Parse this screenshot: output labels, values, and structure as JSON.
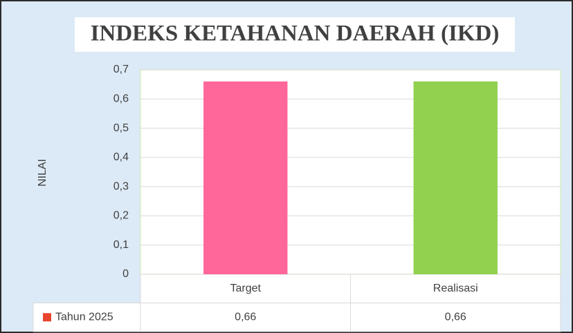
{
  "chart_data": {
    "type": "bar",
    "title": "INDEKS KETAHANAN DAERAH (IKD)",
    "y_label": "NILAI",
    "categories": [
      "Target",
      "Realisasi"
    ],
    "series": [
      {
        "name": "Tahun 2025",
        "color": "#e8452f",
        "values": [
          0.66,
          0.66
        ],
        "value_labels": [
          "0,66",
          "0,66"
        ],
        "point_colors": [
          "#ff6699",
          "#92d050"
        ]
      }
    ],
    "ylim": [
      0,
      0.7
    ],
    "yticks": [
      0,
      {
        "value": 0.1,
        "label": "0,1"
      },
      {
        "value": 0.2,
        "label": "0,2"
      },
      {
        "value": 0.3,
        "label": "0,3"
      },
      {
        "value": 0.4,
        "label": "0,4"
      },
      {
        "value": 0.5,
        "label": "0,5"
      },
      {
        "value": 0.6,
        "label": "0,6"
      },
      {
        "value": 0.7,
        "label": "0,7"
      }
    ],
    "grid": true,
    "data_table": true
  }
}
